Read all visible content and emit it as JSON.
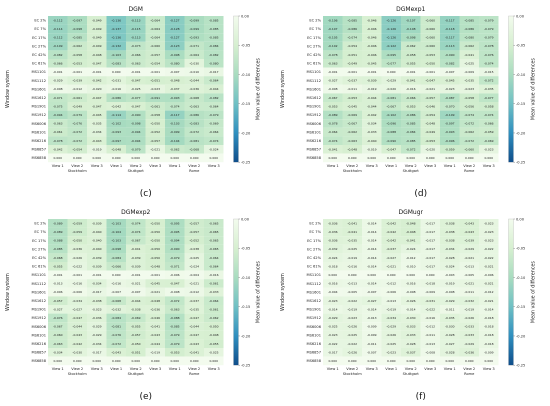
{
  "panels_caption_order": [
    "c",
    "d",
    "e",
    "f"
  ],
  "chart_data": [
    {
      "type": "heatmap",
      "title": "DGM",
      "caption": "(c)",
      "ylabel": "Window system",
      "colorbar_label": "Mean value of differences",
      "colorbar_ticks": [
        0.0,
        -0.05,
        -0.1,
        -0.15,
        -0.2,
        -0.25
      ],
      "clim": [
        -0.25,
        0.0
      ],
      "colors": {
        "high": "#f3fbee",
        "mid": "#7ecbb8",
        "low": "#0f4d8a"
      },
      "x_groups": [
        "Stockholm",
        "Stuttgart",
        "Rome"
      ],
      "x": [
        "View 1",
        "View 2",
        "View 3",
        "View 1",
        "View 2",
        "View 3",
        "View 1",
        "View 2",
        "View 3"
      ],
      "y": [
        "EC 2%",
        "EC 7%",
        "EC 17%",
        "EC 27%",
        "EC 42%",
        "EC 61%",
        "MS1101",
        "MS1112",
        "MS1601",
        "MS1612",
        "MS1901",
        "MS1912",
        "MS6006",
        "MS6101",
        "MS6216",
        "MS6857",
        "MS6858"
      ],
      "values": [
        [
          -0.112,
          -0.097,
          -0.049,
          -0.136,
          -0.113,
          -0.064,
          -0.127,
          -0.099,
          -0.085
        ],
        [
          -0.114,
          -0.098,
          -0.049,
          -0.137,
          -0.115,
          -0.064,
          -0.128,
          -0.099,
          -0.085
        ],
        [
          -0.112,
          -0.085,
          -0.049,
          -0.136,
          -0.113,
          -0.064,
          -0.127,
          -0.093,
          -0.085
        ],
        [
          -0.109,
          -0.062,
          -0.049,
          -0.132,
          -0.073,
          -0.06,
          -0.123,
          -0.071,
          -0.084
        ],
        [
          -0.082,
          -0.058,
          -0.048,
          -0.103,
          -0.066,
          -0.057,
          -0.098,
          -0.064,
          -0.082
        ],
        [
          -0.066,
          -0.053,
          -0.047,
          -0.083,
          -0.063,
          -0.054,
          -0.08,
          -0.03,
          -0.08
        ],
        [
          -0.001,
          -0.001,
          -0.001,
          -0.0,
          -0.001,
          -0.001,
          -0.007,
          -0.01,
          -0.017
        ],
        [
          -0.029,
          -0.039,
          -0.042,
          -0.031,
          -0.047,
          -0.051,
          -0.048,
          -0.044,
          -0.064
        ],
        [
          -0.008,
          -0.012,
          -0.02,
          -0.016,
          -0.025,
          -0.023,
          -0.037,
          -0.036,
          -0.044
        ],
        [
          -0.071,
          -0.061,
          -0.047,
          -0.086,
          -0.077,
          -0.091,
          -0.093,
          -0.068,
          -0.082
        ],
        [
          -0.075,
          -0.049,
          -0.047,
          -0.042,
          -0.047,
          -0.061,
          -0.074,
          -0.063,
          -0.064
        ],
        [
          -0.094,
          -0.079,
          -0.045,
          -0.114,
          -0.09,
          -0.058,
          -0.117,
          -0.086,
          -0.079
        ],
        [
          -0.063,
          -0.076,
          -0.035,
          -0.102,
          -0.098,
          -0.05,
          -0.103,
          -0.083,
          -0.069
        ],
        [
          -0.061,
          -0.072,
          -0.034,
          -0.093,
          -0.094,
          -0.052,
          -0.099,
          -0.072,
          -0.064
        ],
        [
          -0.078,
          -0.072,
          -0.043,
          -0.097,
          -0.094,
          -0.057,
          -0.104,
          -0.081,
          -0.074
        ],
        [
          -0.042,
          -0.054,
          -0.019,
          -0.048,
          -0.079,
          -0.021,
          -0.062,
          -0.068,
          -0.024
        ],
        [
          -0.0,
          -0.0,
          -0.0,
          -0.0,
          -0.0,
          -0.0,
          -0.0,
          -0.0,
          -0.0
        ]
      ]
    },
    {
      "type": "heatmap",
      "title": "DGMexp1",
      "caption": "(d)",
      "ylabel": "Window system",
      "colorbar_label": "Mean value of differences",
      "colorbar_ticks": [
        0.0,
        -0.05,
        -0.1,
        -0.15,
        -0.2,
        -0.25
      ],
      "clim": [
        -0.25,
        0.0
      ],
      "x_groups": [
        "Stockholm",
        "Stuttgart",
        "Rome"
      ],
      "x": [
        "View 1",
        "View 2",
        "View 3",
        "View 1",
        "View 2",
        "View 3",
        "View 1",
        "View 2",
        "View 3"
      ],
      "y": [
        "EC 2%",
        "EC 7%",
        "EC 17%",
        "EC 27%",
        "EC 42%",
        "EC 61%",
        "MS1101",
        "MS1112",
        "MS1601",
        "MS1612",
        "MS1901",
        "MS1912",
        "MS6006",
        "MS6101",
        "MS6216",
        "MS6857",
        "MS6858"
      ],
      "values": [
        [
          -0.106,
          -0.085,
          -0.046,
          -0.126,
          -0.107,
          -0.06,
          -0.117,
          -0.085,
          -0.079
        ],
        [
          -0.107,
          -0.086,
          -0.046,
          -0.126,
          -0.108,
          -0.06,
          -0.118,
          -0.086,
          -0.079
        ],
        [
          -0.105,
          -0.074,
          -0.046,
          -0.126,
          -0.098,
          -0.06,
          -0.117,
          -0.08,
          -0.079
        ],
        [
          -0.102,
          -0.054,
          -0.046,
          -0.122,
          -0.062,
          -0.06,
          -0.113,
          -0.062,
          -0.078
        ],
        [
          -0.078,
          -0.051,
          -0.046,
          -0.095,
          -0.058,
          -0.053,
          -0.09,
          -0.041,
          -0.076
        ],
        [
          -0.063,
          -0.049,
          -0.045,
          -0.077,
          -0.055,
          -0.05,
          -0.082,
          -0.025,
          -0.074
        ],
        [
          -0.001,
          -0.001,
          -0.001,
          -0.0,
          -0.001,
          -0.001,
          -0.007,
          -0.009,
          -0.015
        ],
        [
          -0.027,
          -0.037,
          -0.039,
          -0.029,
          -0.041,
          -0.047,
          -0.045,
          -0.035,
          -0.072
        ],
        [
          -0.008,
          -0.011,
          -0.019,
          -0.02,
          -0.016,
          -0.021,
          -0.023,
          -0.023,
          -0.035
        ],
        [
          -0.067,
          -0.053,
          -0.044,
          -0.081,
          -0.066,
          -0.057,
          -0.087,
          -0.058,
          -0.077
        ],
        [
          -0.053,
          -0.045,
          -0.044,
          -0.067,
          -0.053,
          -0.046,
          -0.07,
          -0.056,
          -0.058
        ],
        [
          -0.089,
          -0.069,
          -0.042,
          -0.102,
          -0.086,
          -0.054,
          -0.109,
          -0.074,
          -0.074
        ],
        [
          -0.078,
          -0.067,
          -0.034,
          -0.096,
          -0.085,
          -0.048,
          -0.097,
          -0.072,
          -0.066
        ],
        [
          -0.064,
          -0.062,
          -0.033,
          -0.088,
          -0.084,
          -0.049,
          -0.093,
          -0.062,
          -0.059
        ],
        [
          -0.074,
          -0.063,
          -0.04,
          -0.09,
          -0.085,
          -0.053,
          -0.096,
          -0.072,
          -0.069
        ],
        [
          -0.041,
          -0.048,
          -0.019,
          -0.047,
          -0.072,
          -0.02,
          -0.059,
          -0.06,
          -0.023
        ],
        [
          -0.0,
          -0.0,
          -0.0,
          -0.0,
          -0.0,
          -0.0,
          -0.0,
          -0.0,
          -0.0
        ]
      ]
    },
    {
      "type": "heatmap",
      "title": "DGMexp2",
      "caption": "(e)",
      "ylabel": "Window system",
      "colorbar_label": "Mean value of differences",
      "colorbar_ticks": [
        0.0,
        -0.05,
        -0.1,
        -0.15,
        -0.2,
        -0.25
      ],
      "clim": [
        -0.25,
        0.0
      ],
      "x_groups": [
        "Stockholm",
        "Stuttgart",
        "Rome"
      ],
      "x": [
        "View 1",
        "View 2",
        "View 3",
        "View 1",
        "View 2",
        "View 3",
        "View 1",
        "View 2",
        "View 3"
      ],
      "y": [
        "EC 2%",
        "EC 7%",
        "EC 17%",
        "EC 27%",
        "EC 42%",
        "EC 61%",
        "MS1101",
        "MS1112",
        "MS1601",
        "MS1612",
        "MS1901",
        "MS1912",
        "MS6006",
        "MS6101",
        "MS6216",
        "MS6857",
        "MS6858"
      ],
      "values": [
        [
          -0.089,
          -0.059,
          -0.039,
          -0.103,
          -0.074,
          -0.05,
          -0.095,
          -0.057,
          -0.065
        ],
        [
          -0.089,
          -0.059,
          -0.04,
          -0.104,
          -0.074,
          -0.05,
          -0.095,
          -0.057,
          -0.065
        ],
        [
          -0.088,
          -0.05,
          -0.04,
          -0.103,
          -0.067,
          -0.05,
          -0.094,
          -0.052,
          -0.065
        ],
        [
          -0.085,
          -0.036,
          -0.04,
          -0.098,
          -0.041,
          -0.05,
          -0.09,
          -0.038,
          -0.065
        ],
        [
          -0.068,
          -0.026,
          -0.039,
          -0.084,
          -0.039,
          -0.05,
          -0.079,
          -0.025,
          -0.064
        ],
        [
          -0.055,
          -0.022,
          -0.039,
          -0.066,
          -0.039,
          -0.048,
          -0.071,
          -0.024,
          -0.064
        ],
        [
          -0.001,
          -0.001,
          -0.001,
          -0.0,
          -0.001,
          -0.001,
          -0.006,
          -0.004,
          -0.016
        ],
        [
          -0.013,
          -0.016,
          -0.034,
          -0.016,
          -0.021,
          -0.045,
          -0.047,
          -0.021,
          -0.061
        ],
        [
          -0.006,
          -0.006,
          -0.017,
          -0.007,
          -0.007,
          -0.021,
          -0.008,
          -0.012,
          -0.033
        ],
        [
          -0.057,
          -0.034,
          -0.038,
          -0.068,
          -0.044,
          -0.048,
          -0.072,
          -0.037,
          -0.064
        ],
        [
          -0.027,
          -0.027,
          -0.023,
          -0.032,
          -0.038,
          -0.036,
          -0.063,
          -0.035,
          -0.061
        ],
        [
          -0.076,
          -0.047,
          -0.036,
          -0.084,
          -0.069,
          -0.046,
          -0.088,
          -0.047,
          -0.062
        ],
        [
          -0.067,
          -0.044,
          -0.029,
          -0.081,
          -0.055,
          -0.041,
          -0.085,
          -0.044,
          -0.05
        ],
        [
          -0.06,
          -0.043,
          -0.029,
          -0.076,
          -0.057,
          -0.043,
          -0.079,
          -0.047,
          -0.048
        ],
        [
          -0.063,
          -0.042,
          -0.034,
          -0.072,
          -0.05,
          -0.044,
          -0.079,
          -0.043,
          -0.055
        ],
        [
          -0.034,
          -0.03,
          -0.017,
          -0.043,
          -0.051,
          -0.019,
          -0.053,
          -0.041,
          -0.025
        ],
        [
          -0.0,
          -0.0,
          -0.0,
          -0.0,
          -0.0,
          -0.0,
          -0.0,
          -0.0,
          -0.0
        ]
      ]
    },
    {
      "type": "heatmap",
      "title": "DGMugr",
      "caption": "(f)",
      "ylabel": "Window system",
      "colorbar_label": "Mean value of differences",
      "colorbar_ticks": [
        0.0,
        -0.05,
        -0.1,
        -0.15,
        -0.2,
        -0.25
      ],
      "clim": [
        -0.25,
        0.0
      ],
      "x_groups": [
        "Stockholm",
        "Stuttgart",
        "Rome"
      ],
      "x": [
        "View 1",
        "View 2",
        "View 3",
        "View 1",
        "View 2",
        "View 3",
        "View 1",
        "View 2",
        "View 3"
      ],
      "y": [
        "EC 2%",
        "EC 7%",
        "EC 17%",
        "EC 27%",
        "EC 42%",
        "EC 61%",
        "MS1101",
        "MS1112",
        "MS1601",
        "MS1612",
        "MS1901",
        "MS1912",
        "MS6006",
        "MS6101",
        "MS6216",
        "MS6857",
        "MS6858"
      ],
      "values": [
        [
          -0.036,
          -0.041,
          -0.014,
          -0.042,
          -0.048,
          -0.017,
          -0.038,
          -0.043,
          -0.023
        ],
        [
          -0.036,
          -0.041,
          -0.014,
          -0.042,
          -0.048,
          -0.017,
          -0.038,
          -0.043,
          -0.023
        ],
        [
          -0.036,
          -0.035,
          -0.014,
          -0.042,
          -0.041,
          -0.017,
          -0.038,
          -0.039,
          -0.023
        ],
        [
          -0.032,
          -0.025,
          -0.014,
          -0.037,
          -0.024,
          -0.017,
          -0.034,
          -0.029,
          -0.022
        ],
        [
          -0.024,
          -0.019,
          -0.014,
          -0.027,
          -0.012,
          -0.017,
          -0.028,
          -0.021,
          -0.022
        ],
        [
          -0.018,
          -0.016,
          -0.014,
          -0.021,
          -0.01,
          -0.017,
          -0.024,
          -0.013,
          -0.021
        ],
        [
          -0.0,
          -0.0,
          -0.0,
          -0.0,
          -0.0,
          -0.0,
          -0.003,
          -0.005,
          -0.006
        ],
        [
          -0.016,
          -0.013,
          -0.014,
          -0.012,
          -0.016,
          -0.018,
          -0.019,
          -0.021,
          -0.021
        ],
        [
          -0.004,
          -0.005,
          -0.007,
          -0.006,
          -0.008,
          -0.009,
          -0.008,
          -0.011,
          -0.012
        ],
        [
          -0.023,
          -0.022,
          -0.027,
          -0.013,
          -0.026,
          -0.031,
          -0.029,
          -0.032,
          -0.021
        ],
        [
          -0.014,
          -0.019,
          -0.014,
          -0.019,
          -0.014,
          -0.022,
          -0.011,
          -0.019,
          -0.014
        ],
        [
          -0.029,
          -0.023,
          -0.013,
          -0.034,
          -0.03,
          -0.016,
          -0.035,
          -0.026,
          -0.018
        ],
        [
          -0.025,
          -0.026,
          -0.009,
          -0.029,
          -0.033,
          -0.012,
          -0.03,
          -0.033,
          -0.018
        ],
        [
          -0.023,
          -0.025,
          -0.009,
          -0.026,
          -0.033,
          -0.011,
          -0.028,
          -0.033,
          -0.018
        ],
        [
          -0.022,
          -0.022,
          -0.011,
          -0.025,
          -0.028,
          -0.013,
          -0.027,
          -0.029,
          -0.018
        ],
        [
          -0.017,
          -0.026,
          -0.007,
          -0.023,
          -0.037,
          -0.008,
          -0.028,
          -0.036,
          -0.009
        ],
        [
          -0.0,
          -0.0,
          -0.0,
          -0.0,
          -0.0,
          -0.0,
          -0.0,
          -0.0,
          -0.0
        ]
      ]
    }
  ]
}
